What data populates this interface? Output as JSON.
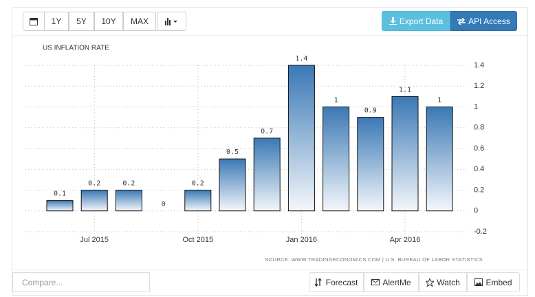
{
  "chart_data": {
    "type": "bar",
    "title": "US INFLATION RATE",
    "categories": [
      null,
      "Jul 2015",
      null,
      null,
      "Oct 2015",
      null,
      null,
      "Jan 2016",
      null,
      null,
      "Apr 2016",
      null
    ],
    "values": [
      0.1,
      0.2,
      0.2,
      0,
      0.2,
      0.5,
      0.7,
      1.4,
      1,
      0.9,
      1.1,
      1
    ],
    "color": "#3a78b5",
    "ylim": [
      -0.2,
      1.4
    ],
    "yticks": [
      -0.2,
      0,
      0.2,
      0.4,
      0.6,
      0.8,
      1,
      1.2,
      1.4
    ],
    "grid": true,
    "source": "SOURCE: WWW.TRADINGECONOMICS.COM | U.S. BUREAU OF LABOR STATISTICS"
  },
  "toolbar": {
    "ranges": [
      "1Y",
      "5Y",
      "10Y",
      "MAX"
    ],
    "export": "Export Data",
    "api": "API Access"
  },
  "footer": {
    "compare": "Compare...",
    "buttons": [
      "Forecast",
      "AlertMe",
      "Watch",
      "Embed"
    ]
  }
}
